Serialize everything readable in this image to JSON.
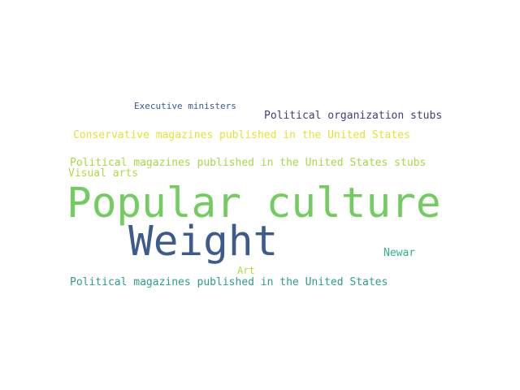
{
  "words": {
    "executive_ministers": "Executive ministers",
    "political_organization_stubs": "Political organization stubs",
    "conservative_magazines": "Conservative magazines published in the United States",
    "political_magazines_stubs": "Political magazines published in the United States stubs",
    "visual_arts": "Visual arts",
    "popular_culture": "Popular culture",
    "weight": "Weight",
    "newar": "Newar",
    "art": "Art",
    "political_magazines": "Political magazines published in the United States"
  },
  "colors": {
    "background": "#ffffff",
    "executive_ministers": "#3b5a8a",
    "political_organization_stubs": "#463a7a",
    "conservative_magazines": "#e4e234",
    "political_magazines_stubs": "#a6d945",
    "visual_arts": "#b1da3c",
    "popular_culture": "#73cc5f",
    "weight": "#3d5b8d",
    "newar": "#2fb38b",
    "art": "#b3db3c",
    "political_magazines": "#2a9e8e"
  }
}
